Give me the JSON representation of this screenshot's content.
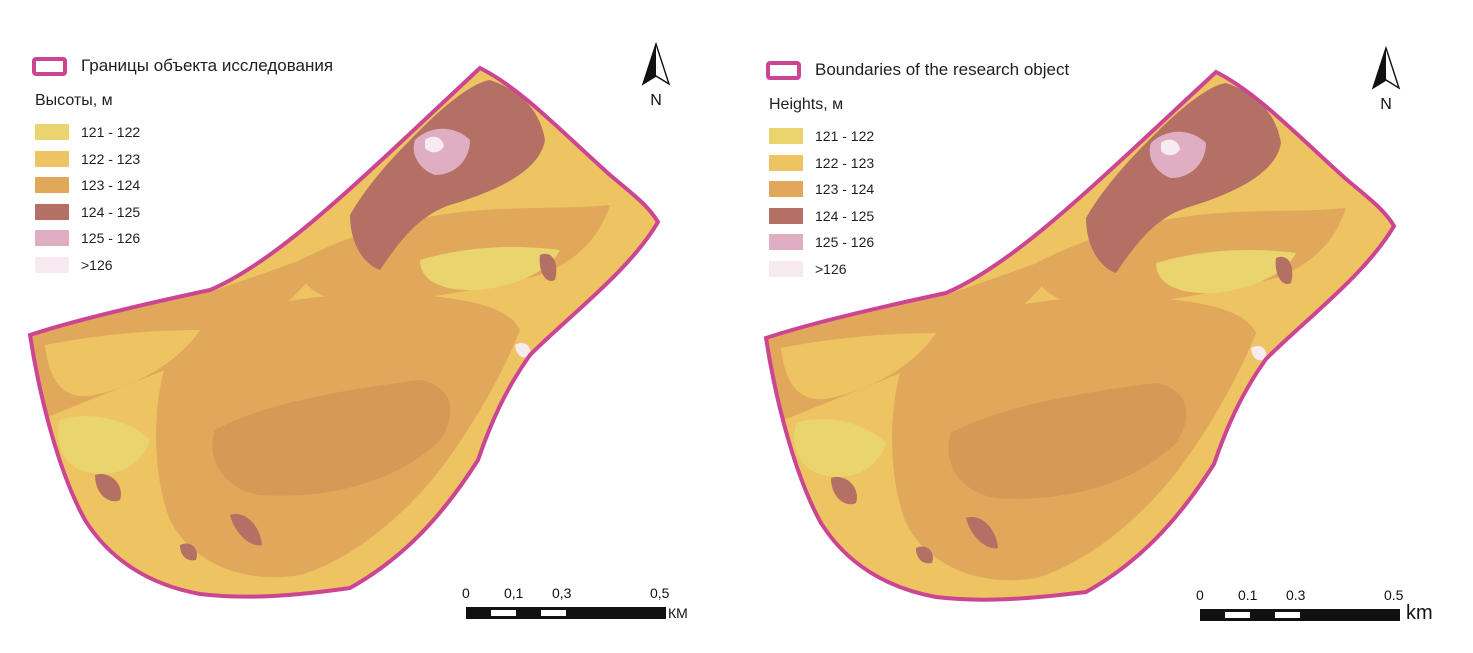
{
  "colors": {
    "boundary": "#cc4592",
    "h121_122": "#e9d46e",
    "h122_123": "#eec463",
    "h123_124": "#e1a75a",
    "h124_125": "#b57066",
    "h125_126": "#dfaec3",
    "h126plus": "#f7eaf1"
  },
  "panels": [
    {
      "language": "ru",
      "boundary_label": "Границы объекта исследования",
      "heights_title": "Высоты, м",
      "legend": [
        {
          "label": "121 - 122",
          "color": "#e9d46e"
        },
        {
          "label": "122 - 123",
          "color": "#eec463"
        },
        {
          "label": "123 - 124",
          "color": "#e1a75a"
        },
        {
          "label": "124 - 125",
          "color": "#b57066"
        },
        {
          "label": "125 - 126",
          "color": "#dfaec3"
        },
        {
          "label": ">126",
          "color": "#f7eaf1"
        }
      ],
      "north_label": "N",
      "scale": {
        "ticks": [
          "0",
          "0,1",
          "0,3",
          "0,5"
        ],
        "unit": "КМ"
      }
    },
    {
      "language": "en",
      "boundary_label": "Boundaries of the research object",
      "heights_title": "Heights, м",
      "legend": [
        {
          "label": "121 - 122",
          "color": "#e9d46e"
        },
        {
          "label": "122 - 123",
          "color": "#eec463"
        },
        {
          "label": "123 - 124",
          "color": "#e1a75a"
        },
        {
          "label": "124 - 125",
          "color": "#b57066"
        },
        {
          "label": "125 - 126",
          "color": "#dfaec3"
        },
        {
          "label": ">126",
          "color": "#f7eaf1"
        }
      ],
      "north_label": "N",
      "scale": {
        "ticks": [
          "0",
          "0.1",
          "0.3",
          "0.5"
        ],
        "unit": "km"
      }
    }
  ]
}
